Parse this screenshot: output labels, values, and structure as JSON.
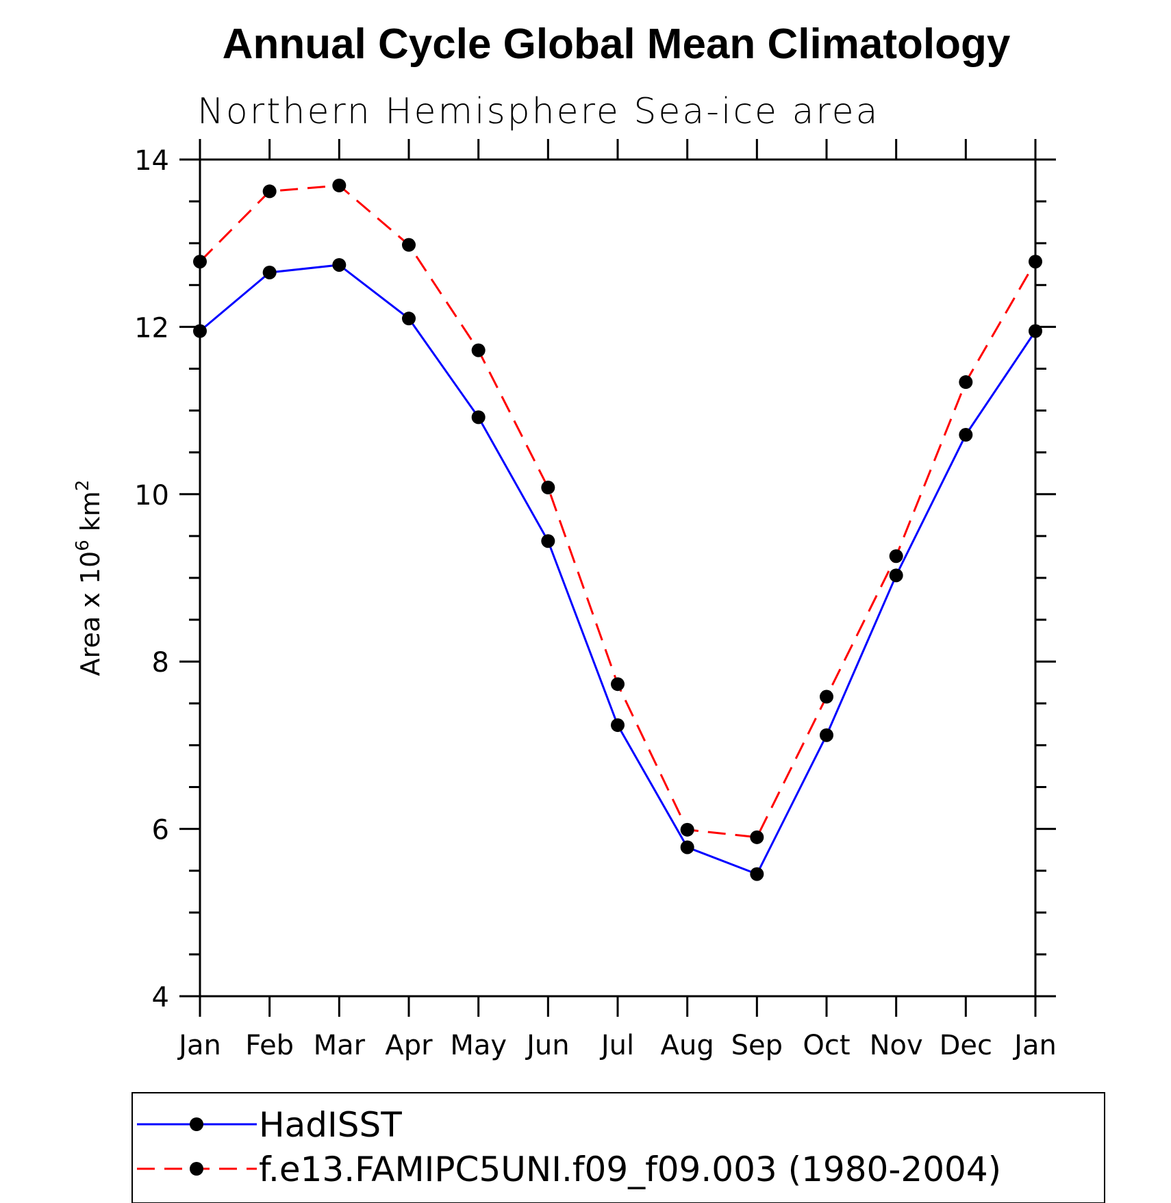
{
  "chart_data": {
    "type": "line",
    "title": "Annual Cycle Global Mean Climatology",
    "subtitle": "Northern Hemisphere Sea-ice area",
    "ylabel_prefix": "Area x 10",
    "ylabel_exp1": "6",
    "ylabel_unit": " km",
    "ylabel_exp2": "2",
    "categories": [
      "Jan",
      "Feb",
      "Mar",
      "Apr",
      "May",
      "Jun",
      "Jul",
      "Aug",
      "Sep",
      "Oct",
      "Nov",
      "Dec",
      "Jan"
    ],
    "ylim": [
      4,
      14
    ],
    "yticks": [
      4,
      6,
      8,
      10,
      12,
      14
    ],
    "yticks_labels": [
      "4",
      "6",
      "8",
      "10",
      "12",
      "14"
    ],
    "series": [
      {
        "name": "HadISST",
        "color": "#0000ff",
        "dash": "solid",
        "values": [
          11.95,
          12.65,
          12.74,
          12.1,
          10.92,
          9.44,
          7.24,
          5.78,
          5.46,
          7.12,
          9.03,
          10.71,
          11.95
        ]
      },
      {
        "name": "f.e13.FAMIPC5UNI.f09_f09.003 (1980-2004)",
        "color": "#ff0000",
        "dash": "dashed",
        "values": [
          12.78,
          13.62,
          13.69,
          12.98,
          11.72,
          10.08,
          7.73,
          5.99,
          5.9,
          7.58,
          9.26,
          11.34,
          12.78
        ]
      }
    ],
    "legend_position": "bottom"
  }
}
